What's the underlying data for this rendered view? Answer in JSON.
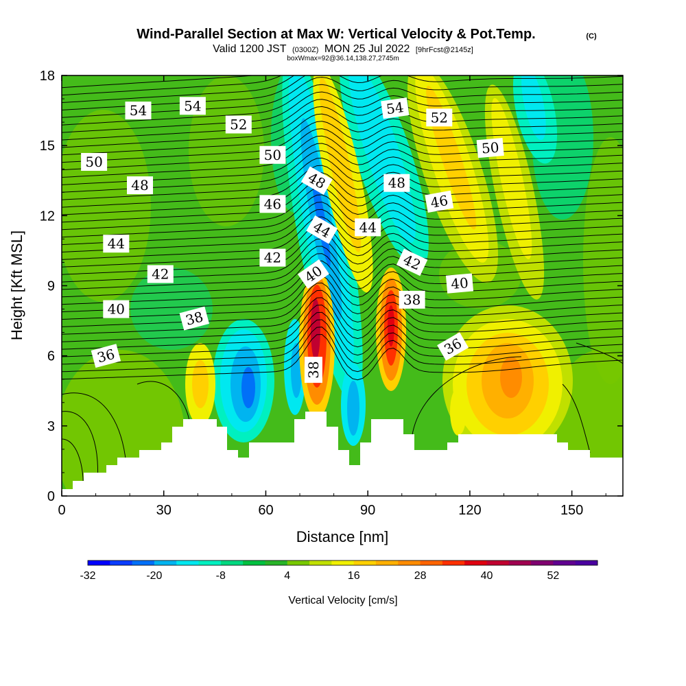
{
  "chart_data": {
    "type": "heatmap",
    "title": "Wind-Parallel Section at Max W: Vertical Velocity & Pot.Temp.",
    "title_mark": "(C)",
    "subtitle": {
      "a": "Valid 1200 JST",
      "b": "(0300Z)",
      "c": "MON 25 Jul 2022",
      "d": "[9hrFcst@2145z]"
    },
    "subsubtitle": "boxWmax=92@36.14,138.27,2745m",
    "xlabel": "Distance [nm]",
    "ylabel": "Height [Kft MSL]",
    "xlim": [
      0,
      165
    ],
    "ylim": [
      0,
      18
    ],
    "x_ticks": [
      "0",
      "30",
      "60",
      "90",
      "120",
      "150"
    ],
    "x_tick_values": [
      0,
      30,
      60,
      90,
      120,
      150
    ],
    "y_ticks": [
      "0",
      "3",
      "6",
      "9",
      "12",
      "15",
      "18"
    ],
    "y_tick_values": [
      0,
      3,
      6,
      9,
      12,
      15,
      18
    ],
    "colorbar": {
      "title": "Vertical Velocity [cm/s]",
      "labels": [
        "-32",
        "-20",
        "-8",
        "4",
        "16",
        "28",
        "40",
        "52"
      ],
      "label_values": [
        -32,
        -20,
        -8,
        4,
        16,
        28,
        40,
        52
      ],
      "range": [
        -32,
        60
      ],
      "step": 4,
      "colors": [
        "#0000ff",
        "#0a3cff",
        "#0070f8",
        "#00b4f0",
        "#00e8f0",
        "#00f0c0",
        "#00d880",
        "#00c040",
        "#28b428",
        "#78c800",
        "#c0e000",
        "#f0f000",
        "#ffd000",
        "#ffb000",
        "#ff8c00",
        "#ff6400",
        "#ff3000",
        "#e00010",
        "#c00030",
        "#a00050",
        "#800070",
        "#600090",
        "#4a00a0"
      ]
    },
    "contour_labels": [
      {
        "text": "54",
        "x": 22.5,
        "y": 16.5,
        "angle": 0
      },
      {
        "text": "54",
        "x": 38.5,
        "y": 16.7,
        "angle": 0
      },
      {
        "text": "54",
        "x": 98,
        "y": 16.6,
        "angle": -8
      },
      {
        "text": "52",
        "x": 52,
        "y": 15.9,
        "angle": 0
      },
      {
        "text": "52",
        "x": 111,
        "y": 16.2,
        "angle": 0
      },
      {
        "text": "50",
        "x": 9.5,
        "y": 14.3,
        "angle": 0
      },
      {
        "text": "50",
        "x": 62,
        "y": 14.6,
        "angle": 0
      },
      {
        "text": "50",
        "x": 126,
        "y": 14.9,
        "angle": -5
      },
      {
        "text": "48",
        "x": 23,
        "y": 13.3,
        "angle": 0
      },
      {
        "text": "48",
        "x": 75,
        "y": 13.5,
        "angle": 30
      },
      {
        "text": "48",
        "x": 98.5,
        "y": 13.4,
        "angle": 0
      },
      {
        "text": "46",
        "x": 62,
        "y": 12.5,
        "angle": 0
      },
      {
        "text": "46",
        "x": 111,
        "y": 12.6,
        "angle": -10
      },
      {
        "text": "44",
        "x": 16,
        "y": 10.8,
        "angle": 0
      },
      {
        "text": "44",
        "x": 76.5,
        "y": 11.4,
        "angle": 30
      },
      {
        "text": "44",
        "x": 90,
        "y": 11.5,
        "angle": 0
      },
      {
        "text": "42",
        "x": 29,
        "y": 9.5,
        "angle": 0
      },
      {
        "text": "42",
        "x": 62,
        "y": 10.2,
        "angle": 0
      },
      {
        "text": "42",
        "x": 103,
        "y": 10.0,
        "angle": 25
      },
      {
        "text": "40",
        "x": 16,
        "y": 8.0,
        "angle": 0
      },
      {
        "text": "40",
        "x": 74,
        "y": 9.5,
        "angle": -35
      },
      {
        "text": "40",
        "x": 117,
        "y": 9.1,
        "angle": -5
      },
      {
        "text": "38",
        "x": 39,
        "y": 7.6,
        "angle": -15
      },
      {
        "text": "38",
        "x": 103,
        "y": 8.4,
        "angle": 0
      },
      {
        "text": "38",
        "x": 74,
        "y": 5.4,
        "angle": -90
      },
      {
        "text": "36",
        "x": 13,
        "y": 6.0,
        "angle": -15
      },
      {
        "text": "36",
        "x": 115,
        "y": 6.4,
        "angle": -30
      }
    ]
  }
}
